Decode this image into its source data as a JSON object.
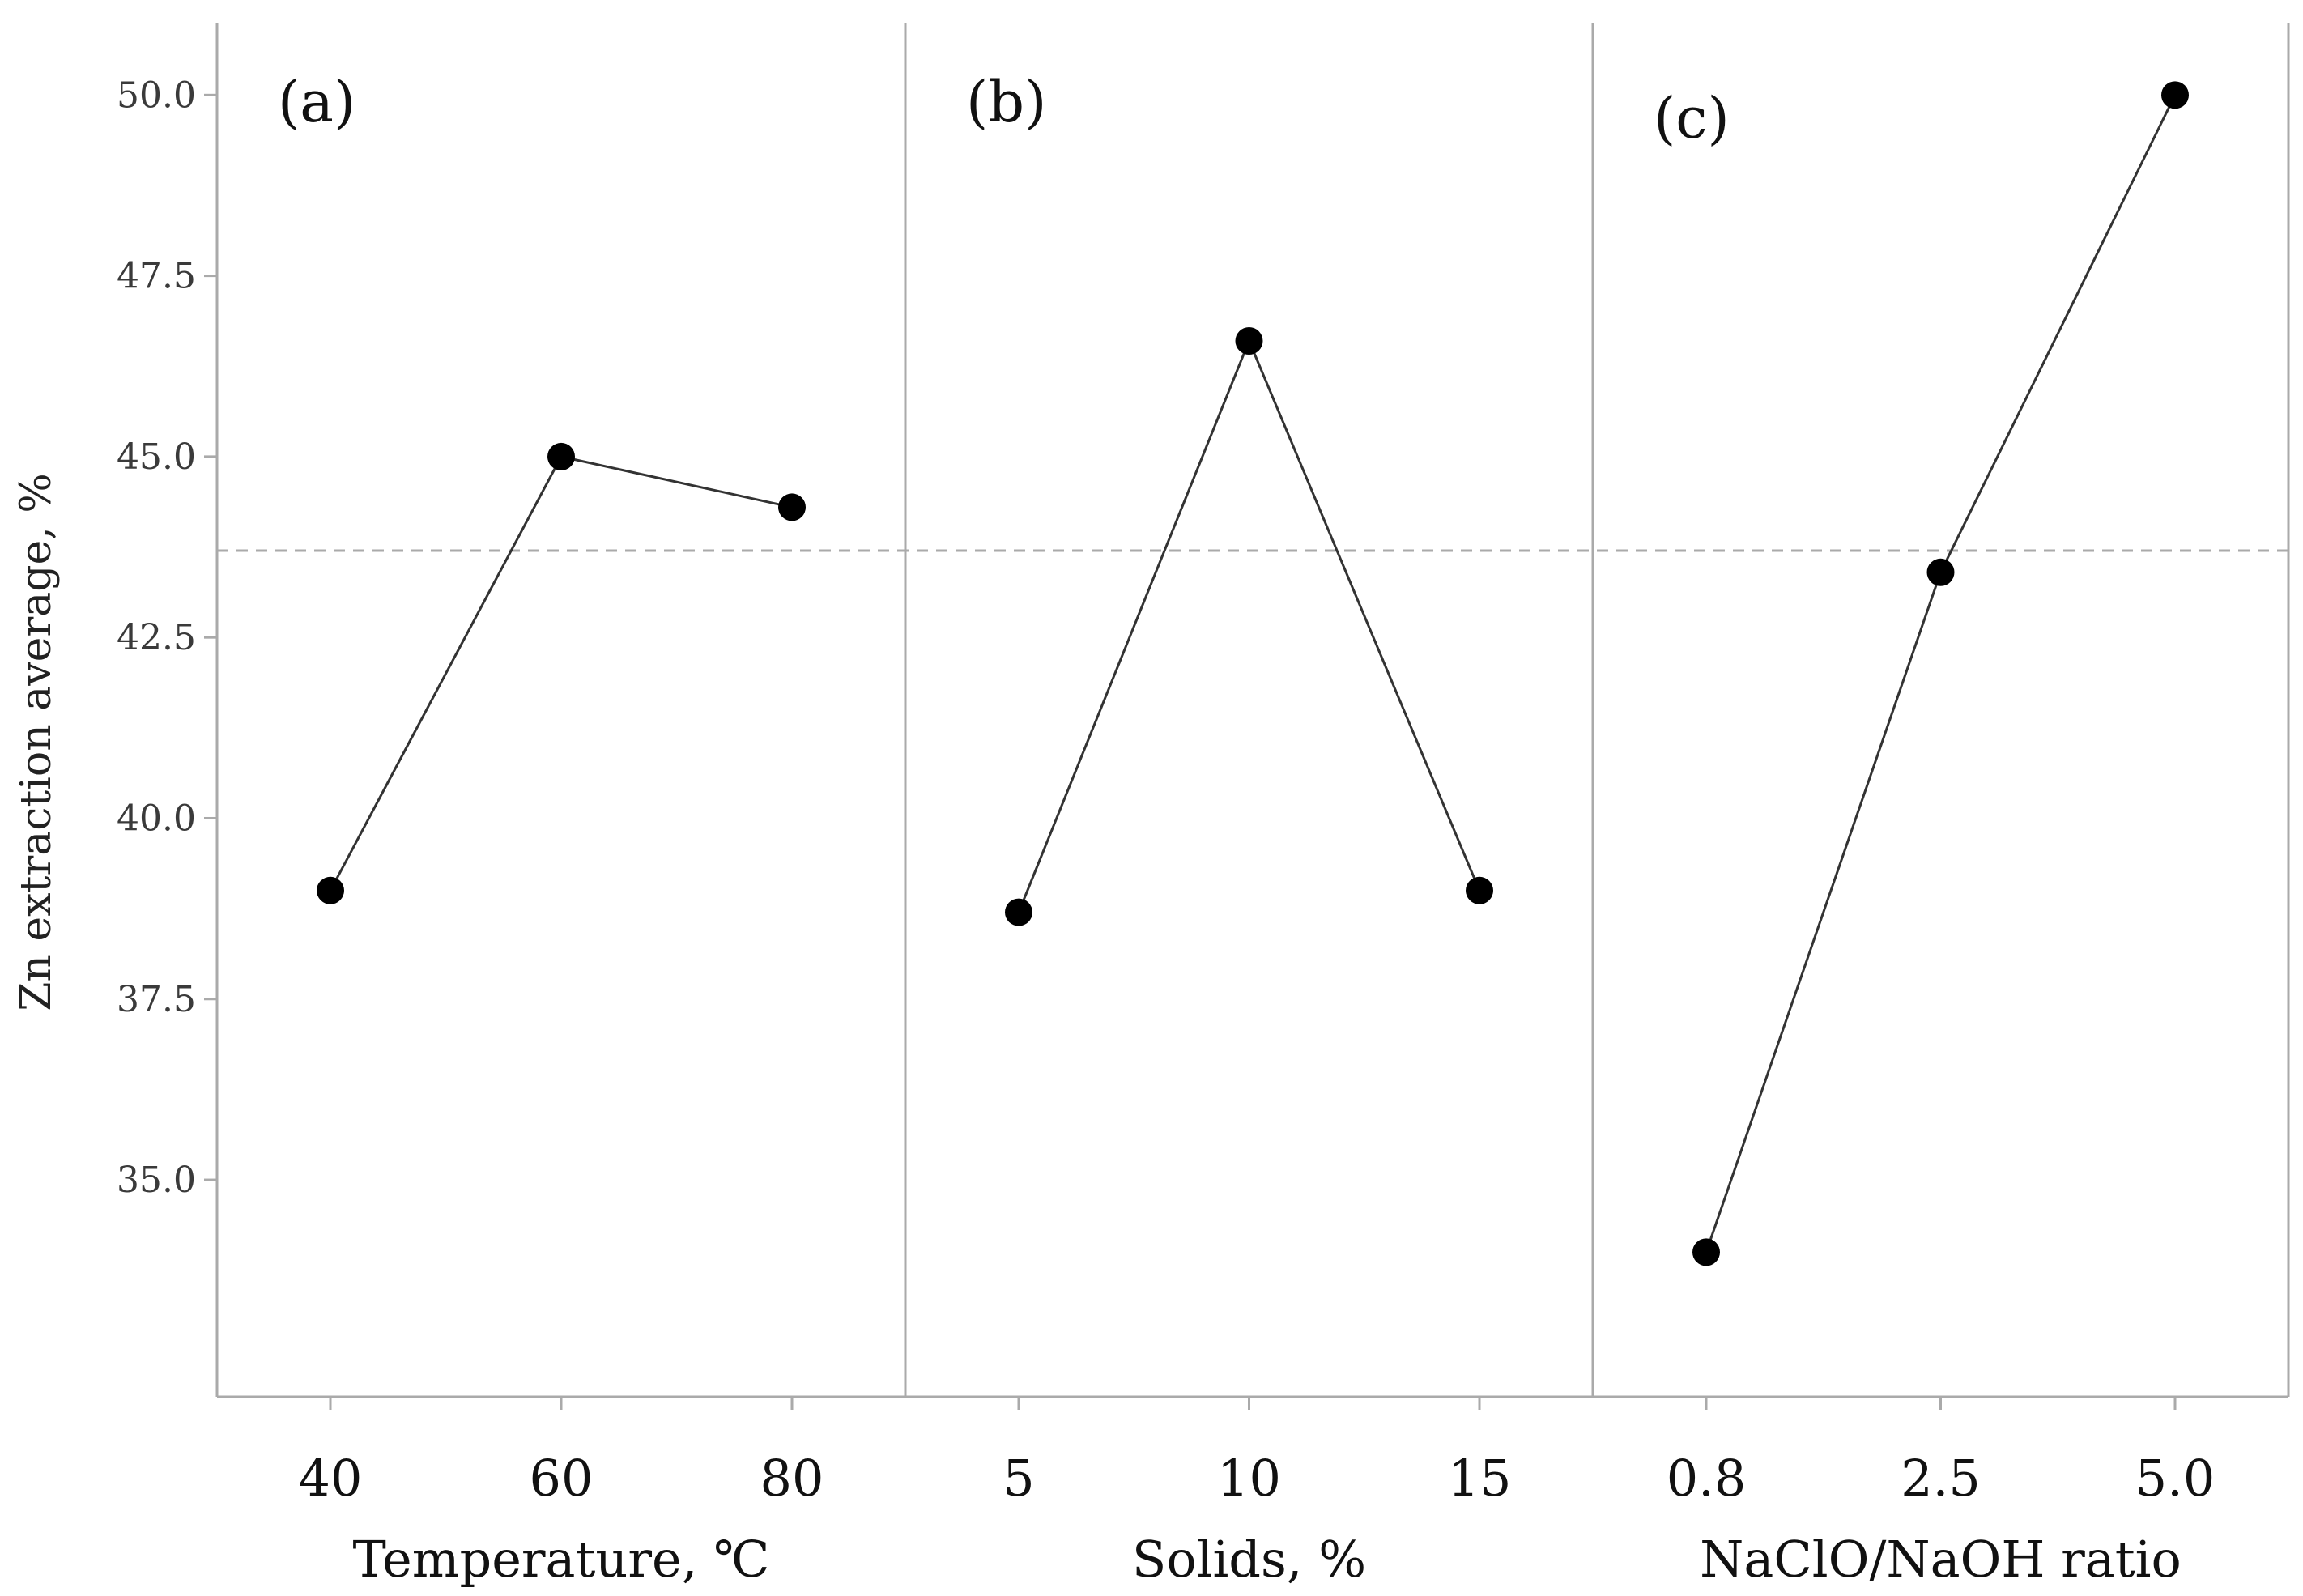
{
  "chart_data": {
    "type": "line",
    "title": "",
    "ylabel": "Zn extraction average, %",
    "ylim": [
      32.0,
      51.0
    ],
    "yticks": [
      35.0,
      37.5,
      40.0,
      42.5,
      45.0,
      47.5,
      50.0
    ],
    "ytick_labels": [
      "35.0",
      "37.5",
      "40.0",
      "42.5",
      "45.0",
      "47.5",
      "50.0"
    ],
    "reference_line": {
      "value": 43.7,
      "style": "dashed"
    },
    "panels": [
      {
        "tag": "(a)",
        "xlabel": "Temperature, ℃",
        "categories": [
          "40",
          "60",
          "80"
        ],
        "values": [
          39.0,
          45.0,
          44.3
        ]
      },
      {
        "tag": "(b)",
        "xlabel": "Solids, %",
        "categories": [
          "5",
          "10",
          "15"
        ],
        "values": [
          38.7,
          46.6,
          39.0
        ]
      },
      {
        "tag": "(c)",
        "xlabel": "NaClO/NaOH  ratio",
        "categories": [
          "0.8",
          "2.5",
          "5.0"
        ],
        "values": [
          34.0,
          43.4,
          50.0
        ]
      }
    ]
  },
  "colors": {
    "line": "#333333",
    "marker": "#000000",
    "frame": "#aaaaaa",
    "reference": "#aaaaaa"
  }
}
